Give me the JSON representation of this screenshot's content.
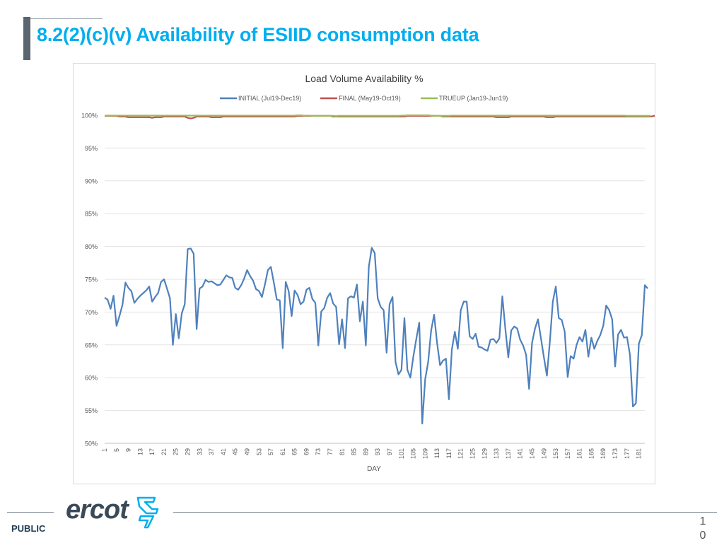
{
  "header": {
    "title": "8.2(2)(c)(v) Availability of ESIID consumption data"
  },
  "footer": {
    "public_label": "PUBLIC",
    "logo_text": "ercot",
    "page_number_line1": "1",
    "page_number_line2": "0"
  },
  "chart_data": {
    "type": "line",
    "title": "Load Volume Availability %",
    "xlabel": "DAY",
    "ylabel": "",
    "ylim": [
      50,
      100
    ],
    "xlim": [
      1,
      183
    ],
    "yticks": [
      "50%",
      "55%",
      "60%",
      "65%",
      "70%",
      "75%",
      "80%",
      "85%",
      "90%",
      "95%",
      "100%"
    ],
    "xticks": [
      1,
      5,
      9,
      13,
      17,
      21,
      25,
      29,
      33,
      37,
      41,
      45,
      49,
      53,
      57,
      61,
      65,
      69,
      73,
      77,
      81,
      85,
      89,
      93,
      97,
      101,
      105,
      109,
      113,
      117,
      121,
      125,
      129,
      133,
      137,
      141,
      145,
      149,
      153,
      157,
      161,
      165,
      169,
      173,
      177,
      181
    ],
    "grid": true,
    "legend_position": "top",
    "series": [
      {
        "name": "INITIAL (Jul19-Dec19)",
        "color": "#4f81bd",
        "values": [
          72.2,
          71.9,
          70.5,
          72.5,
          67.9,
          69.4,
          71.1,
          74.5,
          73.7,
          73.2,
          71.4,
          72.0,
          72.5,
          72.9,
          73.3,
          73.9,
          71.6,
          72.3,
          72.9,
          74.6,
          75.0,
          73.6,
          72.1,
          65.0,
          69.7,
          66.0,
          69.8,
          71.2,
          79.6,
          79.7,
          78.9,
          67.4,
          73.6,
          73.9,
          74.9,
          74.6,
          74.7,
          74.4,
          74.1,
          74.2,
          74.9,
          75.6,
          75.3,
          75.2,
          73.7,
          73.4,
          74.1,
          75.1,
          76.4,
          75.5,
          74.8,
          73.5,
          73.2,
          72.3,
          74.2,
          76.4,
          76.9,
          74.5,
          71.9,
          71.8,
          64.5,
          74.6,
          73.2,
          69.4,
          73.3,
          72.6,
          71.2,
          71.6,
          73.4,
          73.7,
          72.0,
          71.4,
          64.9,
          70.1,
          70.6,
          72.2,
          72.9,
          71.3,
          70.8,
          65.1,
          68.9,
          64.5,
          72.1,
          72.4,
          72.2,
          74.2,
          68.6,
          71.6,
          64.9,
          76.9,
          79.8,
          79.0,
          72.1,
          70.8,
          70.3,
          63.8,
          71.2,
          72.3,
          62.4,
          60.5,
          61.2,
          69.1,
          61.2,
          60.0,
          63.2,
          65.9,
          68.4,
          53.0,
          59.8,
          62.4,
          67.2,
          69.6,
          65.3,
          61.9,
          62.6,
          62.9,
          56.7,
          64.3,
          67.0,
          64.4,
          70.3,
          71.6,
          71.6,
          66.3,
          65.9,
          66.7,
          64.7,
          64.6,
          64.3,
          64.1,
          65.8,
          65.9,
          65.3,
          66.0,
          72.4,
          67.5,
          63.1,
          67.2,
          67.8,
          67.5,
          65.8,
          64.9,
          63.5,
          58.3,
          65.3,
          67.5,
          68.9,
          66.0,
          63.1,
          60.3,
          65.5,
          71.6,
          73.9,
          69.1,
          68.8,
          67.0,
          60.1,
          63.3,
          62.9,
          65.0,
          66.2,
          65.5,
          67.3,
          63.2,
          66.1,
          64.4,
          65.6,
          66.5,
          67.9,
          71.0,
          70.3,
          68.9,
          61.7,
          66.6,
          67.3,
          66.1,
          66.2,
          63.5,
          55.6,
          56.1,
          65.2,
          66.5,
          74.1,
          73.6
        ]
      },
      {
        "name": "FINAL (May19-Oct19)",
        "color": "#c0504d",
        "values": [
          99.9,
          99.9,
          99.9,
          99.9,
          99.9,
          99.8,
          99.8,
          99.8,
          99.7,
          99.7,
          99.7,
          99.7,
          99.7,
          99.7,
          99.7,
          99.7,
          99.6,
          99.7,
          99.7,
          99.7,
          99.8,
          99.8,
          99.8,
          99.8,
          99.8,
          99.8,
          99.8,
          99.8,
          99.6,
          99.5,
          99.6,
          99.8,
          99.8,
          99.8,
          99.8,
          99.8,
          99.7,
          99.7,
          99.7,
          99.7,
          99.8,
          99.8,
          99.8,
          99.8,
          99.8,
          99.8,
          99.8,
          99.8,
          99.8,
          99.8,
          99.8,
          99.8,
          99.8,
          99.8,
          99.8,
          99.8,
          99.8,
          99.8,
          99.8,
          99.8,
          99.8,
          99.8,
          99.8,
          99.8,
          99.8,
          99.9,
          99.9,
          99.9,
          99.9,
          99.9,
          99.9,
          99.9,
          99.9,
          99.9,
          99.9,
          99.9,
          99.9,
          99.8,
          99.8,
          99.8,
          99.8,
          99.8,
          99.8,
          99.8,
          99.8,
          99.8,
          99.8,
          99.8,
          99.8,
          99.8,
          99.8,
          99.8,
          99.8,
          99.8,
          99.8,
          99.8,
          99.8,
          99.8,
          99.8,
          99.8,
          99.8,
          99.8,
          99.9,
          99.9,
          99.9,
          99.9,
          99.9,
          99.9,
          99.9,
          99.9,
          99.9,
          99.9,
          99.9,
          99.9,
          99.8,
          99.8,
          99.8,
          99.8,
          99.8,
          99.8,
          99.8,
          99.8,
          99.8,
          99.8,
          99.8,
          99.8,
          99.8,
          99.8,
          99.8,
          99.8,
          99.8,
          99.8,
          99.7,
          99.7,
          99.7,
          99.7,
          99.7,
          99.8,
          99.8,
          99.8,
          99.8,
          99.8,
          99.8,
          99.8,
          99.8,
          99.8,
          99.8,
          99.8,
          99.8,
          99.7,
          99.7,
          99.7,
          99.8,
          99.8,
          99.8,
          99.8,
          99.8,
          99.8,
          99.8,
          99.8,
          99.8,
          99.8,
          99.8,
          99.8,
          99.8,
          99.8,
          99.8,
          99.8,
          99.8,
          99.8,
          99.8,
          99.8,
          99.8,
          99.8,
          99.8,
          99.8,
          99.8,
          99.8,
          99.8,
          99.8,
          99.8,
          99.8,
          99.8,
          99.8,
          99.8,
          99.9,
          99.9,
          99.9,
          99.9,
          99.9,
          99.9
        ]
      },
      {
        "name": "TRUEUP (Jan19-Jun19)",
        "color": "#9bbb59",
        "values": [
          99.95,
          99.95,
          99.95,
          99.95,
          99.95,
          99.95,
          99.95,
          99.95,
          99.95,
          99.95,
          99.95,
          99.95,
          99.95,
          99.95,
          99.95,
          99.95,
          99.95,
          99.95,
          99.95,
          99.95,
          99.95,
          99.95,
          99.95,
          99.95,
          99.95,
          99.95,
          99.95,
          99.95,
          99.95,
          99.95,
          99.95,
          99.95,
          99.95,
          99.95,
          99.95,
          99.95,
          99.95,
          99.95,
          99.95,
          99.95,
          99.95,
          99.95,
          99.95,
          99.95,
          99.95,
          99.95,
          99.95,
          99.95,
          99.95,
          99.95,
          99.95,
          99.95,
          99.95,
          99.95,
          99.95,
          99.95,
          99.95,
          99.95,
          99.95,
          99.95,
          99.95,
          99.95,
          99.95,
          99.95,
          99.95,
          100.0,
          100.0,
          99.95,
          99.95,
          99.95,
          99.9,
          99.9,
          99.9,
          99.9,
          99.9,
          99.9,
          99.9,
          99.9,
          99.85,
          99.9,
          99.9,
          99.9,
          99.9,
          99.9,
          99.9,
          99.9,
          99.9,
          99.9,
          99.9,
          99.9,
          99.9,
          99.9,
          99.9,
          99.9,
          99.9,
          99.9,
          99.9,
          99.9,
          99.9,
          99.9,
          99.95,
          99.95,
          100.0,
          100.0,
          100.0,
          100.0,
          100.0,
          100.0,
          100.0,
          100.0,
          99.95,
          99.9,
          99.9,
          99.9,
          99.9,
          99.9,
          99.9,
          99.95,
          99.95,
          99.95,
          99.95,
          99.95,
          99.95,
          99.95,
          99.95,
          99.95,
          99.95,
          99.95,
          99.95,
          99.95,
          99.95,
          99.95,
          99.95,
          99.95,
          99.95,
          99.95,
          99.95,
          99.95,
          99.95,
          99.95,
          99.95,
          99.95,
          99.95,
          99.95,
          99.95,
          99.95,
          99.95,
          99.95,
          99.95,
          99.95,
          99.95,
          99.95,
          99.95,
          99.95,
          99.95,
          99.95,
          99.95,
          99.95,
          99.95,
          99.95,
          99.95,
          99.95,
          99.95,
          99.95,
          99.95,
          99.95,
          99.95,
          99.95,
          99.95,
          99.95,
          99.95,
          99.95,
          99.95,
          99.95,
          99.95,
          99.95,
          99.9,
          99.9,
          99.9,
          99.9,
          99.9,
          99.9,
          99.9,
          99.9,
          99.9
        ]
      }
    ]
  }
}
